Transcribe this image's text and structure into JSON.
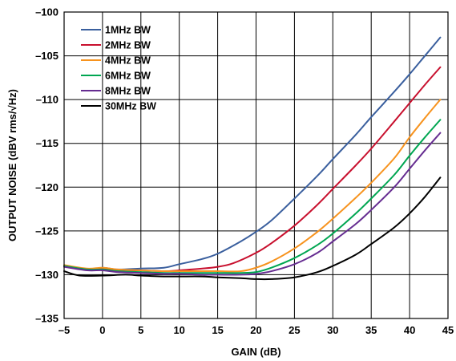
{
  "chart_data": {
    "type": "line",
    "title": "",
    "xlabel": "GAIN (dB)",
    "ylabel": "OUTPUT NOISE (dBV rms/√Hz)",
    "xlim": [
      -5,
      45
    ],
    "ylim": [
      -135,
      -100
    ],
    "xticks": [
      -5,
      0,
      5,
      10,
      15,
      20,
      25,
      30,
      35,
      40,
      45
    ],
    "yticks": [
      -100,
      -105,
      -110,
      -115,
      -120,
      -125,
      -130,
      -135
    ],
    "xtick_labels": [
      "–5",
      "0",
      "5",
      "10",
      "15",
      "20",
      "25",
      "30",
      "35",
      "40",
      "45"
    ],
    "ytick_labels": [
      "–100",
      "–105",
      "–110",
      "–115",
      "–120",
      "–125",
      "–130",
      "–135"
    ],
    "grid": true,
    "legend_position": "top-left",
    "series": [
      {
        "name": "1MHz BW",
        "color": "#3a5f9e",
        "x": [
          -5,
          -2,
          0,
          2,
          5,
          8,
          10,
          13,
          15,
          18,
          20,
          22,
          25,
          28,
          30,
          33,
          35,
          38,
          40,
          42,
          44
        ],
        "y": [
          -129,
          -129.4,
          -129.2,
          -129.4,
          -129.3,
          -129.2,
          -128.8,
          -128.2,
          -127.6,
          -126.2,
          -125.1,
          -123.8,
          -121.3,
          -118.7,
          -116.8,
          -114,
          -112,
          -109.1,
          -107.1,
          -105,
          -102.9
        ]
      },
      {
        "name": "2MHz BW",
        "color": "#c8102e",
        "x": [
          -5,
          -2,
          0,
          2,
          5,
          8,
          10,
          13,
          15,
          17,
          20,
          22,
          25,
          28,
          30,
          33,
          35,
          38,
          40,
          42,
          44
        ],
        "y": [
          -129,
          -129.4,
          -129.3,
          -129.5,
          -129.5,
          -129.6,
          -129.5,
          -129.3,
          -129.1,
          -128.7,
          -127.5,
          -126.4,
          -124.4,
          -122,
          -120.2,
          -117.5,
          -115.6,
          -112.5,
          -110.4,
          -108.3,
          -106.3
        ]
      },
      {
        "name": "4MHz BW",
        "color": "#f7931e",
        "x": [
          -5,
          -2,
          0,
          2,
          5,
          8,
          10,
          13,
          15,
          18,
          20,
          22,
          25,
          28,
          30,
          33,
          35,
          38,
          40,
          42,
          44
        ],
        "y": [
          -128.9,
          -129.3,
          -129.2,
          -129.4,
          -129.5,
          -129.6,
          -129.6,
          -129.6,
          -129.6,
          -129.6,
          -129.2,
          -128.5,
          -127,
          -125.1,
          -123.6,
          -121.2,
          -119.5,
          -116.7,
          -114.3,
          -112.1,
          -110
        ]
      },
      {
        "name": "6MHz BW",
        "color": "#00a651",
        "x": [
          -5,
          -2,
          0,
          2,
          5,
          8,
          10,
          13,
          15,
          18,
          20,
          22,
          25,
          28,
          30,
          33,
          35,
          38,
          40,
          42,
          44
        ],
        "y": [
          -129,
          -129.4,
          -129.4,
          -129.6,
          -129.7,
          -129.8,
          -129.8,
          -129.8,
          -129.8,
          -129.8,
          -129.7,
          -129.2,
          -128.1,
          -126.6,
          -125.3,
          -123,
          -121.3,
          -118.6,
          -116.4,
          -114.3,
          -112.3
        ]
      },
      {
        "name": "8MHz BW",
        "color": "#662d91",
        "x": [
          -5,
          -2,
          0,
          2,
          5,
          8,
          10,
          13,
          15,
          18,
          20,
          22,
          25,
          28,
          30,
          33,
          35,
          38,
          40,
          42,
          44
        ],
        "y": [
          -129.1,
          -129.5,
          -129.5,
          -129.7,
          -129.8,
          -129.9,
          -129.9,
          -130,
          -130,
          -130,
          -129.9,
          -129.6,
          -128.8,
          -127.5,
          -126.2,
          -124.2,
          -122.6,
          -120,
          -117.9,
          -115.8,
          -113.8
        ]
      },
      {
        "name": "30MHz BW",
        "color": "#000000",
        "x": [
          -5,
          -3,
          0,
          3,
          5,
          8,
          10,
          13,
          15,
          18,
          20,
          22,
          25,
          28,
          30,
          33,
          35,
          38,
          40,
          42,
          44
        ],
        "y": [
          -129.6,
          -130.1,
          -130.1,
          -130,
          -130.1,
          -130.2,
          -130.2,
          -130.2,
          -130.3,
          -130.4,
          -130.5,
          -130.5,
          -130.3,
          -129.7,
          -129,
          -127.7,
          -126.5,
          -124.6,
          -123,
          -121.1,
          -118.9
        ]
      }
    ]
  }
}
